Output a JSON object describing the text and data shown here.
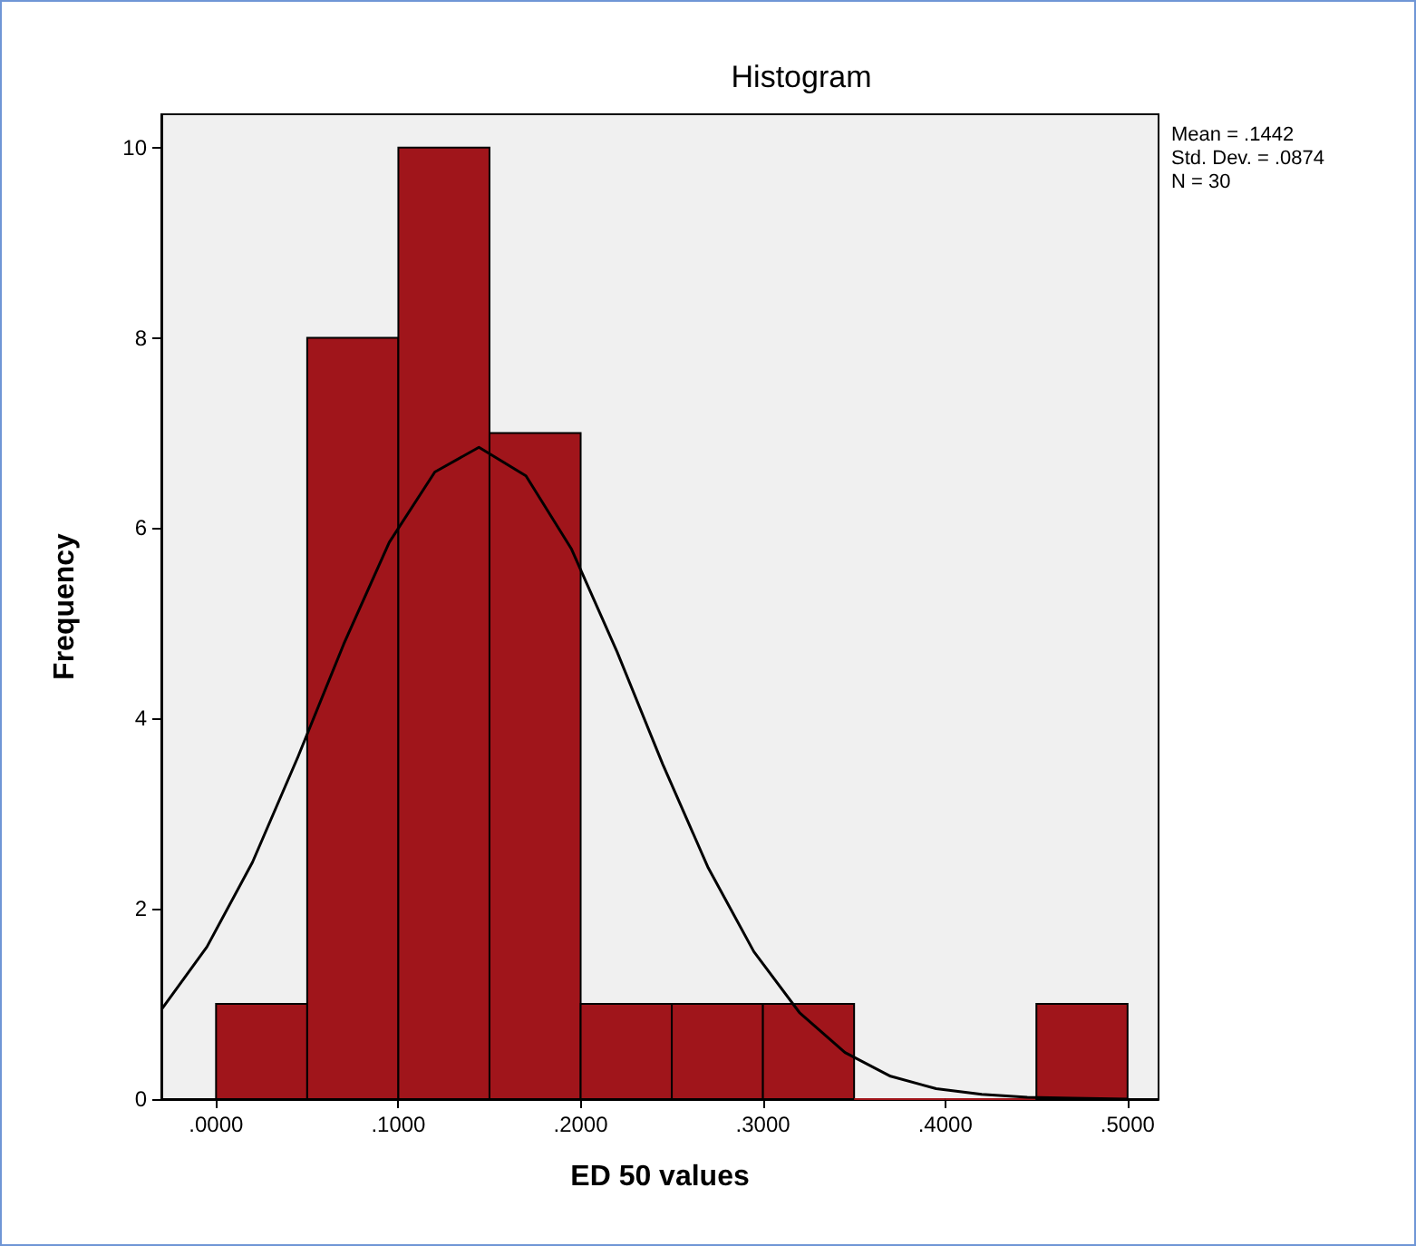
{
  "chart_data": {
    "type": "histogram",
    "title": "Histogram",
    "xlabel": "ED 50 values",
    "ylabel": "Frequency",
    "annotations": [
      "Mean = .1442",
      "Std. Dev. = .0874",
      "N = 30"
    ],
    "series": [
      {
        "color": "#a0151b",
        "bins": [
          0,
          0.05,
          0.1,
          0.15,
          0.2,
          0.25,
          0.3,
          0.35,
          0.4,
          0.45,
          0.5
        ],
        "values": [
          1,
          8,
          10,
          7,
          1,
          1,
          1,
          0,
          0,
          1
        ]
      },
      {
        "type": "line",
        "color": "#000000",
        "x": [
          -0.03,
          -0.005,
          0.02,
          0.045,
          0.07,
          0.095,
          0.12,
          0.1442,
          0.17,
          0.195,
          0.22,
          0.245,
          0.27,
          0.295,
          0.32,
          0.345,
          0.37,
          0.395,
          0.42,
          0.445,
          0.47,
          0.5
        ],
        "values": [
          0.94,
          1.6,
          2.49,
          3.6,
          4.78,
          5.85,
          6.59,
          6.85,
          6.55,
          5.78,
          4.7,
          3.52,
          2.43,
          1.55,
          0.91,
          0.49,
          0.24,
          0.11,
          0.05,
          0.02,
          0.01,
          0
        ]
      }
    ],
    "xlim": [
      -0.03,
      0.517
    ],
    "xticks": [
      {
        "value": 0,
        "label": ".0000"
      },
      {
        "value": 0.1,
        "label": ".1000"
      },
      {
        "value": 0.2,
        "label": ".2000"
      },
      {
        "value": 0.3,
        "label": ".3000"
      },
      {
        "value": 0.4,
        "label": ".4000"
      },
      {
        "value": 0.5,
        "label": ".5000"
      }
    ],
    "ylim": [
      0,
      10.35
    ],
    "yticks": [
      0,
      2,
      4,
      6,
      8,
      10
    ],
    "grid": false,
    "marker": "none",
    "line_style": "solid"
  }
}
